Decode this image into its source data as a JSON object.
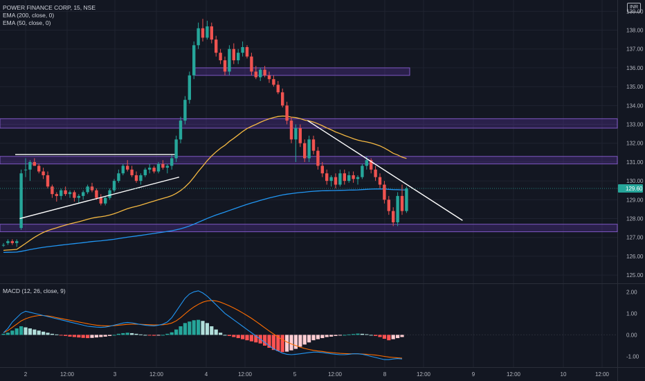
{
  "header": {
    "title": "POWER FINANCE CORP, 15, NSE",
    "indicators": [
      "EMA (200, close, 0)",
      "EMA (50, close, 0)"
    ],
    "currency": "INR"
  },
  "macd": {
    "title": "MACD (12, 26, close, 9)",
    "y_ticks": [
      "2.00",
      "1.00",
      "0.00",
      "-1.00"
    ]
  },
  "price_label": "129.60",
  "x_ticks": [
    "2",
    "12:00",
    "3",
    "12:00",
    "4",
    "12:00",
    "5",
    "12:00",
    "8",
    "12:00",
    "9",
    "12:00",
    "10",
    "12:00"
  ],
  "colors": {
    "bg": "#131722",
    "up": "#26a69a",
    "down": "#ef5350",
    "ema200": "#2196f3",
    "ema50": "#f5b942",
    "zone": "#673ab7",
    "macd_line": "#2196f3",
    "signal_line": "#ff6d00"
  },
  "chart_data": {
    "type": "candlestick",
    "symbol": "POWER FINANCE CORP",
    "interval": "15",
    "exchange": "NSE",
    "ylim": [
      124.6,
      139.6
    ],
    "y_ticks": [
      139,
      138,
      137,
      136,
      135,
      134,
      133,
      132,
      131,
      130,
      129,
      128,
      127,
      126,
      125
    ],
    "last_price": 129.6,
    "zones": [
      [
        135.6,
        136.0
      ],
      [
        132.8,
        133.3
      ],
      [
        130.9,
        131.3
      ],
      [
        127.3,
        127.7
      ]
    ],
    "trendlines": [
      {
        "from": [
          0,
          131.4
        ],
        "to": [
          36,
          131.4
        ]
      },
      {
        "from": [
          1,
          128.0
        ],
        "to": [
          37,
          130.2
        ]
      },
      {
        "from": [
          66,
          133.2
        ],
        "to": [
          101,
          127.9
        ]
      }
    ],
    "candles": [
      [
        126.6,
        126.7,
        126.5,
        126.6
      ],
      [
        126.7,
        126.9,
        126.6,
        126.8
      ],
      [
        126.8,
        126.9,
        126.6,
        126.7
      ],
      [
        126.7,
        126.9,
        126.5,
        126.8
      ],
      [
        127.5,
        130.6,
        127.4,
        130.4
      ],
      [
        130.6,
        131.2,
        130.2,
        130.6
      ],
      [
        130.6,
        131.1,
        130.0,
        131.0
      ],
      [
        131.0,
        131.2,
        130.8,
        130.8
      ],
      [
        130.8,
        130.9,
        130.4,
        130.5
      ],
      [
        130.5,
        130.7,
        130.1,
        130.3
      ],
      [
        130.3,
        130.5,
        129.6,
        129.7
      ],
      [
        129.7,
        129.8,
        129.1,
        129.3
      ],
      [
        129.3,
        129.4,
        128.9,
        129.2
      ],
      [
        129.2,
        129.6,
        129.0,
        129.5
      ],
      [
        129.5,
        129.7,
        129.2,
        129.3
      ],
      [
        129.3,
        129.5,
        129.1,
        129.4
      ],
      [
        129.4,
        129.5,
        128.9,
        129.1
      ],
      [
        129.1,
        129.3,
        128.8,
        129.2
      ],
      [
        129.2,
        129.5,
        129.0,
        129.4
      ],
      [
        129.4,
        129.8,
        129.3,
        129.7
      ],
      [
        129.7,
        129.9,
        129.4,
        129.5
      ],
      [
        129.5,
        129.6,
        129.0,
        129.1
      ],
      [
        129.1,
        129.3,
        128.7,
        128.8
      ],
      [
        128.8,
        129.2,
        128.7,
        129.1
      ],
      [
        129.1,
        129.6,
        129.0,
        129.5
      ],
      [
        129.5,
        130.1,
        129.4,
        130.0
      ],
      [
        130.0,
        130.6,
        129.9,
        130.4
      ],
      [
        130.4,
        130.9,
        130.3,
        130.8
      ],
      [
        130.8,
        131.1,
        130.5,
        130.6
      ],
      [
        130.6,
        130.8,
        130.2,
        130.3
      ],
      [
        130.3,
        130.5,
        129.9,
        130.0
      ],
      [
        130.0,
        130.4,
        129.8,
        130.3
      ],
      [
        130.3,
        130.7,
        130.2,
        130.6
      ],
      [
        130.6,
        130.9,
        130.4,
        130.7
      ],
      [
        130.7,
        130.8,
        130.4,
        130.5
      ],
      [
        130.5,
        131.0,
        130.4,
        130.9
      ],
      [
        130.9,
        131.1,
        130.6,
        130.7
      ],
      [
        130.7,
        130.9,
        130.4,
        130.8
      ],
      [
        130.8,
        131.4,
        130.6,
        131.2
      ],
      [
        131.2,
        132.4,
        131.0,
        132.2
      ],
      [
        132.2,
        133.4,
        132.0,
        133.2
      ],
      [
        133.2,
        134.5,
        133.0,
        134.3
      ],
      [
        134.3,
        135.8,
        134.1,
        135.6
      ],
      [
        135.6,
        137.4,
        135.4,
        137.2
      ],
      [
        137.2,
        138.4,
        137.0,
        138.1
      ],
      [
        138.1,
        138.6,
        137.4,
        137.6
      ],
      [
        137.6,
        138.5,
        137.5,
        138.2
      ],
      [
        138.2,
        138.4,
        137.3,
        137.5
      ],
      [
        137.5,
        137.7,
        136.6,
        136.8
      ],
      [
        136.8,
        137.0,
        136.2,
        136.4
      ],
      [
        136.4,
        136.6,
        135.6,
        135.8
      ],
      [
        135.8,
        137.2,
        135.6,
        137.0
      ],
      [
        137.0,
        137.3,
        136.2,
        136.4
      ],
      [
        136.4,
        137.0,
        136.2,
        136.8
      ],
      [
        136.8,
        137.4,
        136.6,
        137.1
      ],
      [
        137.1,
        137.2,
        136.5,
        136.6
      ],
      [
        136.6,
        136.8,
        135.6,
        135.8
      ],
      [
        135.8,
        136.1,
        135.4,
        135.5
      ],
      [
        135.5,
        136.0,
        135.3,
        135.9
      ],
      [
        135.9,
        136.1,
        135.5,
        135.6
      ],
      [
        135.6,
        135.8,
        135.2,
        135.4
      ],
      [
        135.4,
        135.6,
        135.0,
        135.1
      ],
      [
        135.1,
        135.3,
        134.6,
        134.7
      ],
      [
        134.7,
        134.9,
        133.9,
        134.0
      ],
      [
        134.0,
        134.2,
        133.0,
        133.2
      ],
      [
        133.2,
        133.4,
        132.0,
        132.2
      ],
      [
        132.2,
        133.0,
        131.0,
        132.8
      ],
      [
        132.8,
        133.0,
        131.8,
        132.0
      ],
      [
        132.0,
        132.2,
        131.0,
        131.2
      ],
      [
        131.2,
        132.4,
        131.0,
        132.2
      ],
      [
        132.2,
        132.4,
        131.4,
        131.6
      ],
      [
        131.6,
        131.8,
        130.6,
        130.8
      ],
      [
        130.8,
        131.0,
        130.2,
        130.4
      ],
      [
        130.4,
        130.6,
        129.8,
        130.0
      ],
      [
        130.0,
        130.3,
        129.7,
        130.2
      ],
      [
        130.2,
        130.4,
        129.6,
        129.8
      ],
      [
        129.8,
        130.6,
        129.7,
        130.4
      ],
      [
        130.4,
        130.6,
        129.8,
        130.0
      ],
      [
        130.0,
        130.5,
        129.9,
        130.3
      ],
      [
        130.3,
        130.5,
        129.9,
        130.1
      ],
      [
        130.1,
        130.3,
        129.8,
        130.2
      ],
      [
        130.2,
        130.9,
        130.1,
        130.8
      ],
      [
        130.8,
        131.3,
        130.6,
        131.1
      ],
      [
        131.1,
        131.2,
        130.4,
        130.6
      ],
      [
        130.6,
        130.8,
        130.0,
        130.2
      ],
      [
        130.2,
        130.4,
        129.6,
        129.8
      ],
      [
        129.8,
        130.0,
        128.8,
        129.0
      ],
      [
        129.0,
        129.2,
        128.2,
        128.4
      ],
      [
        128.4,
        128.6,
        127.6,
        127.8
      ],
      [
        127.8,
        129.4,
        127.6,
        129.2
      ],
      [
        129.2,
        129.8,
        128.2,
        128.4
      ],
      [
        128.4,
        129.7,
        128.3,
        129.6
      ]
    ],
    "macd": {
      "ylim": [
        -1.5,
        2.3
      ],
      "histogram": [
        0.05,
        0.1,
        0.2,
        0.3,
        0.4,
        0.35,
        0.3,
        0.25,
        0.2,
        0.15,
        0.1,
        0.05,
        0.02,
        -0.02,
        -0.05,
        -0.08,
        -0.1,
        -0.12,
        -0.14,
        -0.15,
        -0.14,
        -0.12,
        -0.1,
        -0.08,
        -0.05,
        0.0,
        0.05,
        0.08,
        0.1,
        0.08,
        0.05,
        0.02,
        0.0,
        -0.02,
        -0.04,
        -0.03,
        0.0,
        0.05,
        0.12,
        0.25,
        0.4,
        0.55,
        0.62,
        0.68,
        0.7,
        0.65,
        0.55,
        0.4,
        0.25,
        0.1,
        0.0,
        -0.05,
        -0.1,
        -0.15,
        -0.2,
        -0.25,
        -0.3,
        -0.35,
        -0.4,
        -0.5,
        -0.6,
        -0.7,
        -0.75,
        -0.8,
        -0.78,
        -0.72,
        -0.65,
        -0.55,
        -0.45,
        -0.35,
        -0.25,
        -0.2,
        -0.15,
        -0.1,
        -0.08,
        -0.05,
        -0.03,
        0.0,
        0.02,
        0.04,
        0.06,
        0.05,
        0.03,
        0.0,
        -0.05,
        -0.1,
        -0.18,
        -0.25,
        -0.2,
        -0.15,
        -0.1
      ],
      "macd_line": [
        0.1,
        0.3,
        0.6,
        0.8,
        1.0,
        1.1,
        1.05,
        1.0,
        0.95,
        0.9,
        0.85,
        0.8,
        0.75,
        0.7,
        0.65,
        0.6,
        0.55,
        0.5,
        0.45,
        0.4,
        0.38,
        0.36,
        0.35,
        0.36,
        0.4,
        0.45,
        0.5,
        0.55,
        0.58,
        0.56,
        0.52,
        0.48,
        0.45,
        0.43,
        0.42,
        0.45,
        0.5,
        0.6,
        0.8,
        1.1,
        1.4,
        1.7,
        1.9,
        2.0,
        2.05,
        1.95,
        1.8,
        1.6,
        1.4,
        1.2,
        1.0,
        0.85,
        0.7,
        0.55,
        0.4,
        0.25,
        0.1,
        -0.05,
        -0.2,
        -0.35,
        -0.5,
        -0.65,
        -0.75,
        -0.85,
        -0.9,
        -0.92,
        -0.9,
        -0.88,
        -0.85,
        -0.82,
        -0.8,
        -0.8,
        -0.82,
        -0.85,
        -0.88,
        -0.9,
        -0.92,
        -0.92,
        -0.9,
        -0.88,
        -0.88,
        -0.9,
        -0.95,
        -1.0,
        -1.05,
        -1.1,
        -1.15,
        -1.15,
        -1.12,
        -1.1,
        -1.12
      ],
      "signal_line": [
        0.1,
        0.2,
        0.35,
        0.5,
        0.65,
        0.75,
        0.82,
        0.87,
        0.9,
        0.9,
        0.88,
        0.85,
        0.8,
        0.76,
        0.72,
        0.68,
        0.64,
        0.6,
        0.56,
        0.52,
        0.48,
        0.45,
        0.43,
        0.42,
        0.42,
        0.43,
        0.45,
        0.47,
        0.49,
        0.5,
        0.5,
        0.49,
        0.48,
        0.47,
        0.46,
        0.46,
        0.47,
        0.5,
        0.55,
        0.65,
        0.8,
        0.98,
        1.15,
        1.3,
        1.42,
        1.52,
        1.58,
        1.6,
        1.58,
        1.52,
        1.44,
        1.35,
        1.25,
        1.14,
        1.02,
        0.9,
        0.77,
        0.63,
        0.48,
        0.33,
        0.18,
        0.04,
        -0.1,
        -0.22,
        -0.33,
        -0.42,
        -0.5,
        -0.57,
        -0.63,
        -0.68,
        -0.72,
        -0.75,
        -0.77,
        -0.8,
        -0.82,
        -0.84,
        -0.86,
        -0.87,
        -0.88,
        -0.88,
        -0.88,
        -0.89,
        -0.9,
        -0.92,
        -0.94,
        -0.97,
        -1.0,
        -1.03,
        -1.05,
        -1.07,
        -1.08
      ]
    }
  }
}
